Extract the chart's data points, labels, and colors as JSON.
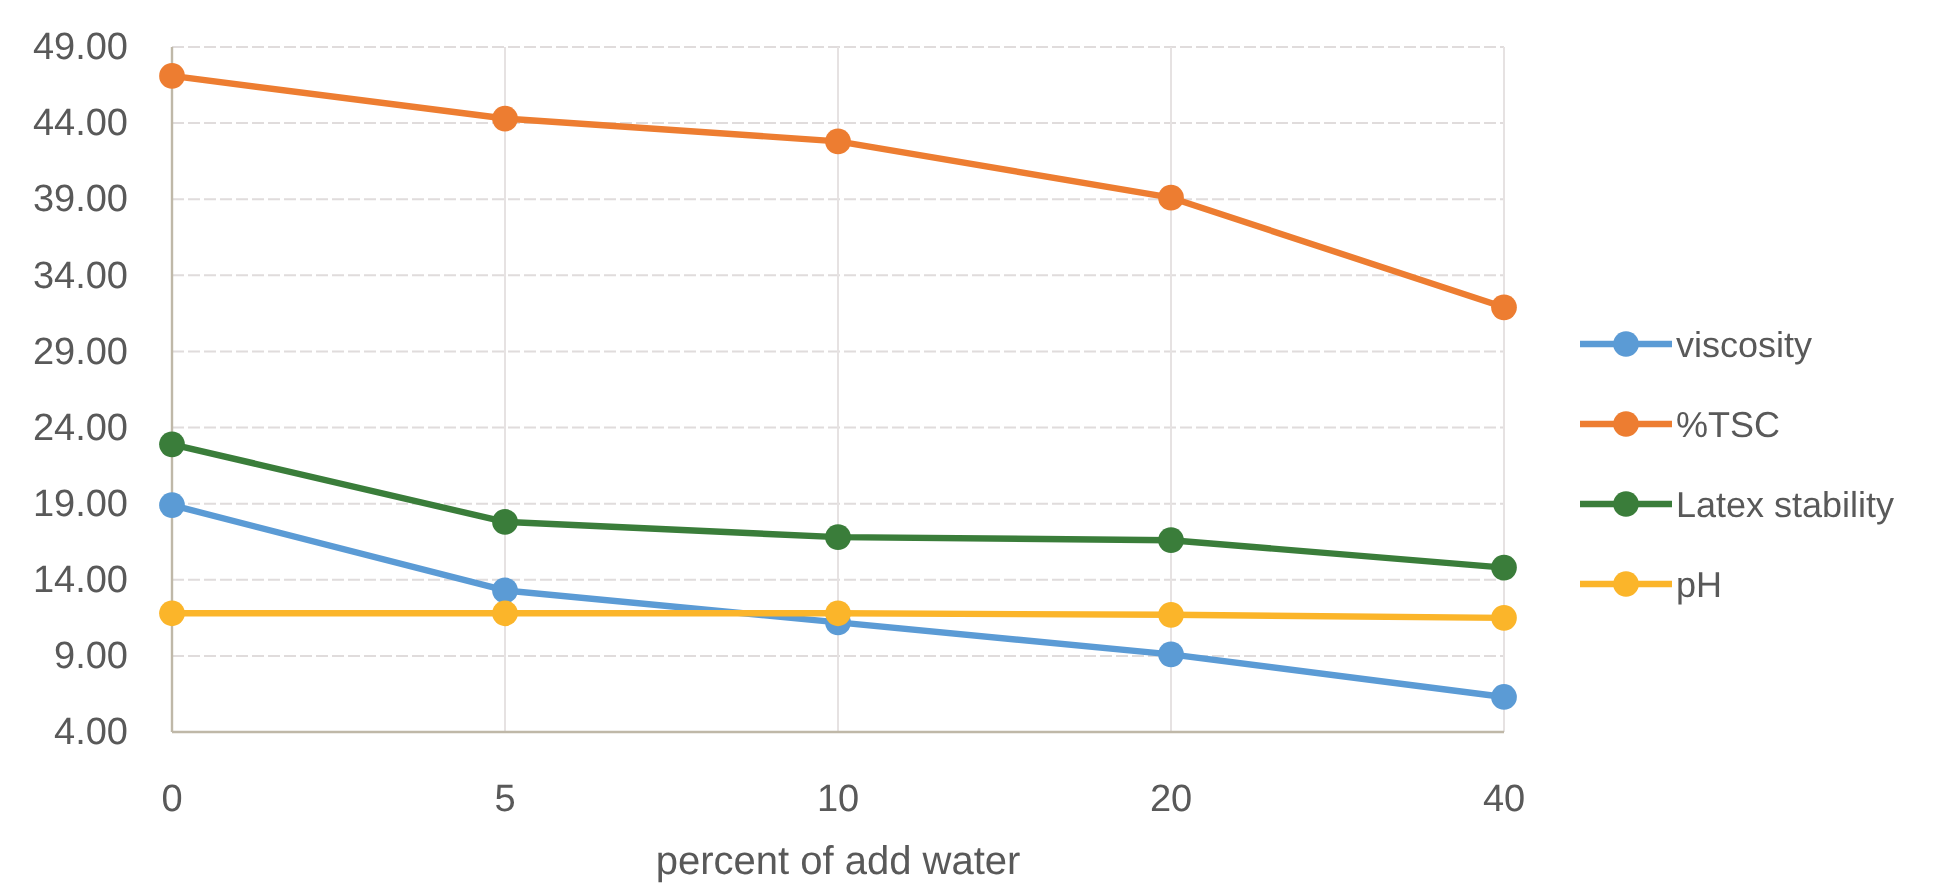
{
  "chart_data": {
    "type": "line",
    "xlabel": "percent of add water",
    "categories": [
      "0",
      "5",
      "10",
      "20",
      "40"
    ],
    "series": [
      {
        "name": "viscosity",
        "color": "#5b9bd5",
        "values": [
          18.9,
          13.3,
          11.2,
          9.1,
          6.3
        ]
      },
      {
        "name": "%TSC",
        "color": "#ed7d31",
        "values": [
          47.1,
          44.3,
          42.8,
          39.1,
          31.9
        ]
      },
      {
        "name": "Latex stability",
        "color": "#3a7d3a",
        "values": [
          22.9,
          17.8,
          16.8,
          16.6,
          14.8
        ]
      },
      {
        "name": "pH",
        "color": "#fbb52a",
        "values": [
          11.8,
          11.8,
          11.8,
          11.7,
          11.5
        ]
      }
    ],
    "ylim": [
      4,
      49
    ],
    "yticks": [
      {
        "value": 4,
        "label": "4.00"
      },
      {
        "value": 9,
        "label": "9.00"
      },
      {
        "value": 14,
        "label": "14.00"
      },
      {
        "value": 19,
        "label": "19.00"
      },
      {
        "value": 24,
        "label": "24.00"
      },
      {
        "value": 29,
        "label": "29.00"
      },
      {
        "value": 34,
        "label": "34.00"
      },
      {
        "value": 39,
        "label": "39.00"
      },
      {
        "value": 44,
        "label": "44.00"
      },
      {
        "value": 49,
        "label": "49.00"
      }
    ],
    "grid": true,
    "legend": "right",
    "marker": "circle",
    "line_style": "solid"
  }
}
